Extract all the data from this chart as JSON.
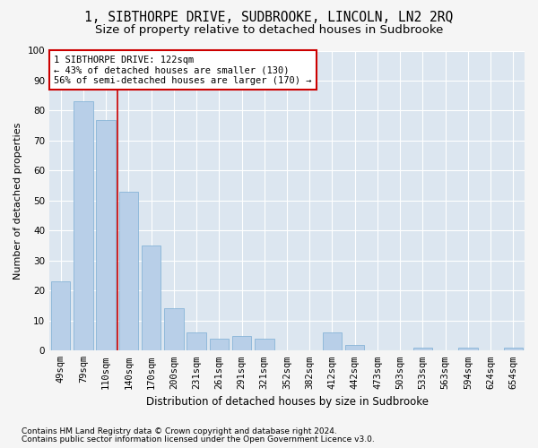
{
  "title": "1, SIBTHORPE DRIVE, SUDBROOKE, LINCOLN, LN2 2RQ",
  "subtitle": "Size of property relative to detached houses in Sudbrooke",
  "xlabel": "Distribution of detached houses by size in Sudbrooke",
  "ylabel": "Number of detached properties",
  "categories": [
    "49sqm",
    "79sqm",
    "110sqm",
    "140sqm",
    "170sqm",
    "200sqm",
    "231sqm",
    "261sqm",
    "291sqm",
    "321sqm",
    "352sqm",
    "382sqm",
    "412sqm",
    "442sqm",
    "473sqm",
    "503sqm",
    "533sqm",
    "563sqm",
    "594sqm",
    "624sqm",
    "654sqm"
  ],
  "values": [
    23,
    83,
    77,
    53,
    35,
    14,
    6,
    4,
    5,
    4,
    0,
    0,
    6,
    2,
    0,
    0,
    1,
    0,
    1,
    0,
    1
  ],
  "bar_color": "#b8cfe8",
  "bar_edge_color": "#7aadd4",
  "fig_background_color": "#f5f5f5",
  "ax_background_color": "#dce6f0",
  "grid_color": "#ffffff",
  "annotation_box_color": "#ffffff",
  "annotation_box_edge": "#cc0000",
  "annotation_line_color": "#cc0000",
  "annotation_text_line1": "1 SIBTHORPE DRIVE: 122sqm",
  "annotation_text_line2": "← 43% of detached houses are smaller (130)",
  "annotation_text_line3": "56% of semi-detached houses are larger (170) →",
  "property_line_x": 2.5,
  "ylim": [
    0,
    100
  ],
  "yticks": [
    0,
    10,
    20,
    30,
    40,
    50,
    60,
    70,
    80,
    90,
    100
  ],
  "footnote1": "Contains HM Land Registry data © Crown copyright and database right 2024.",
  "footnote2": "Contains public sector information licensed under the Open Government Licence v3.0.",
  "title_fontsize": 10.5,
  "subtitle_fontsize": 9.5,
  "xlabel_fontsize": 8.5,
  "ylabel_fontsize": 8,
  "tick_fontsize": 7.5,
  "annotation_fontsize": 7.5,
  "footnote_fontsize": 6.5
}
